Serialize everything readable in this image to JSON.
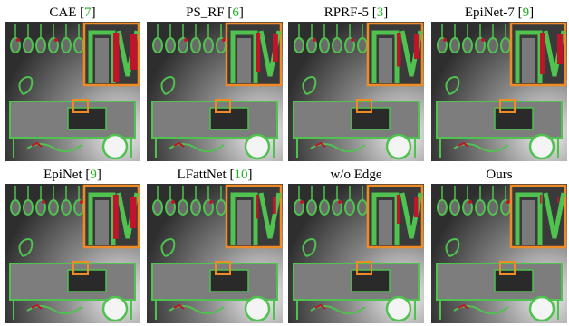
{
  "panels": [
    {
      "caption": [
        "CAE [",
        "7",
        "]"
      ]
    },
    {
      "caption": [
        "PS_RF [",
        "6",
        "]"
      ]
    },
    {
      "caption": [
        "RPRF-5 [",
        "3",
        "]"
      ]
    },
    {
      "caption": [
        "EpiNet-7 [",
        "9",
        "]"
      ]
    },
    {
      "caption": [
        "EpiNet [",
        "9",
        "]"
      ]
    },
    {
      "caption": [
        "LFattNet [",
        "10",
        "]"
      ]
    },
    {
      "caption": [
        "w/o Edge"
      ]
    },
    {
      "caption": [
        "Ours"
      ]
    }
  ]
}
